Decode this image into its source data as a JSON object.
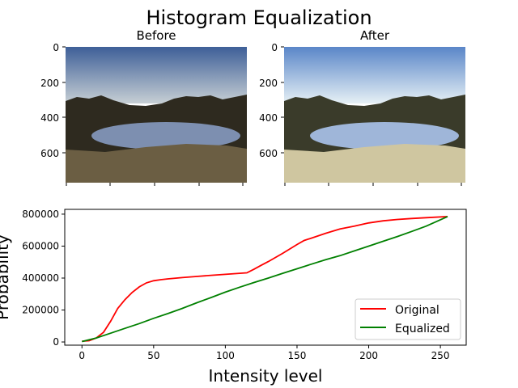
{
  "title": "Histogram Equalization",
  "images": [
    {
      "title": "Before",
      "y_ticks": [
        "0",
        "200",
        "400",
        "600"
      ],
      "sky_top": "#3e5f98",
      "sky_bottom": "#c7cfd4",
      "ground": "#2e2a1f",
      "grass": "#6b5e43",
      "lake": "#7d8fb0"
    },
    {
      "title": "After",
      "y_ticks": [
        "0",
        "200",
        "400",
        "600"
      ],
      "sky_top": "#5a86c8",
      "sky_bottom": "#e6f0f5",
      "ground": "#3a3b2a",
      "grass": "#cfc6a0",
      "lake": "#9fb6d9"
    }
  ],
  "chart_data": {
    "type": "line",
    "xlabel": "Intensity level",
    "ylabel": "Probability",
    "xlim": [
      -12,
      268
    ],
    "ylim": [
      -20000,
      830000
    ],
    "x_ticks": [
      0,
      50,
      100,
      150,
      200,
      250
    ],
    "y_ticks": [
      0,
      200000,
      400000,
      600000,
      800000
    ],
    "legend_position": "lower right",
    "series": [
      {
        "name": "Original",
        "color": "#ff0000",
        "x": [
          0,
          5,
          10,
          15,
          20,
          25,
          30,
          35,
          40,
          45,
          50,
          55,
          60,
          70,
          80,
          90,
          100,
          110,
          115,
          120,
          125,
          130,
          140,
          150,
          155,
          160,
          170,
          180,
          190,
          200,
          210,
          220,
          230,
          240,
          255
        ],
        "y": [
          5000,
          8000,
          25000,
          60000,
          130000,
          210000,
          265000,
          310000,
          345000,
          370000,
          383000,
          390000,
          395000,
          403000,
          410000,
          417000,
          423000,
          430000,
          433000,
          455000,
          480000,
          503000,
          555000,
          610000,
          635000,
          650000,
          680000,
          707000,
          725000,
          745000,
          758000,
          767000,
          773000,
          778000,
          785000
        ]
      },
      {
        "name": "Equalized",
        "color": "#008000",
        "x": [
          0,
          10,
          20,
          30,
          40,
          50,
          60,
          70,
          80,
          90,
          100,
          110,
          120,
          130,
          140,
          150,
          160,
          170,
          180,
          190,
          200,
          210,
          220,
          230,
          240,
          255
        ],
        "y": [
          3000,
          25000,
          55000,
          85000,
          115000,
          148000,
          178000,
          210000,
          245000,
          278000,
          312000,
          343000,
          372000,
          400000,
          430000,
          458000,
          487000,
          515000,
          540000,
          570000,
          600000,
          630000,
          660000,
          692000,
          725000,
          785000
        ]
      }
    ]
  }
}
